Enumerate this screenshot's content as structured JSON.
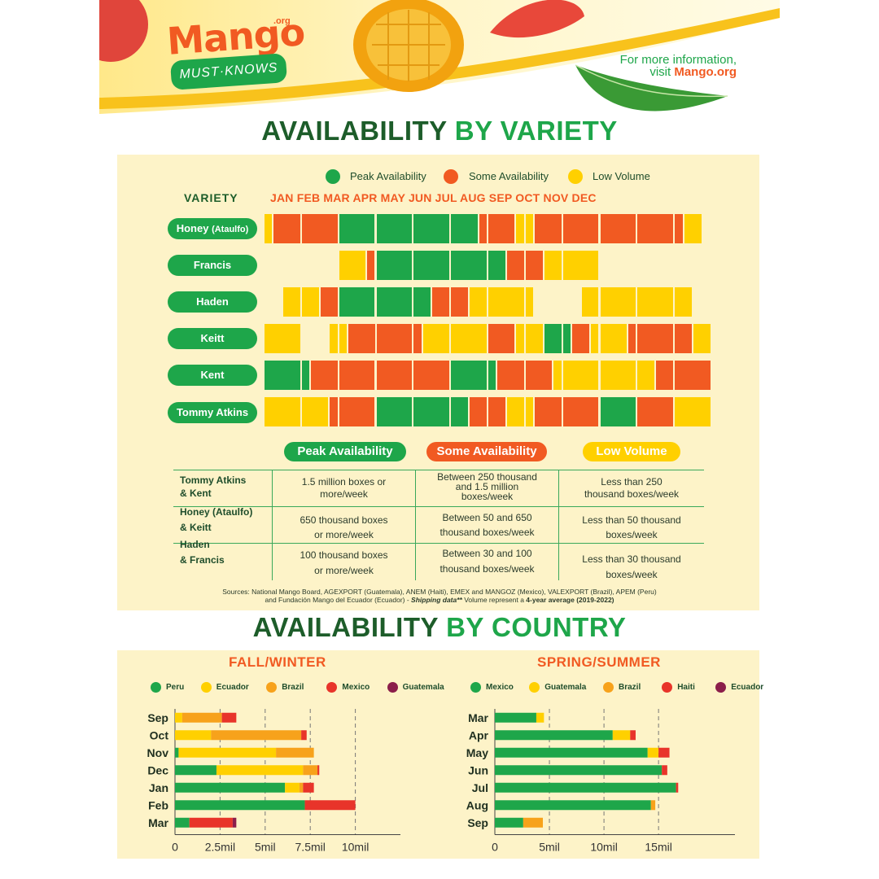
{
  "header": {
    "logo_text": "Mango",
    "logo_suffix": ".org",
    "badge": "MUST·KNOWS",
    "info_line1": "For more information,",
    "info_line2_prefix": "visit ",
    "info_link": "Mango.org"
  },
  "section1": {
    "title_dark": "AVAILABILITY",
    "title_green": "BY VARIETY"
  },
  "legend": [
    {
      "label": "Peak Availability",
      "color": "#1ea64a"
    },
    {
      "label": "Some Availability",
      "color": "#f15a22"
    },
    {
      "label": "Low Volume",
      "color": "#ffd000"
    }
  ],
  "colors": {
    "peak": "#1ea64a",
    "some": "#f15a22",
    "low": "#ffd000",
    "none": "#fdf3c8"
  },
  "variety_header": "VARIETY",
  "months_text": "JAN FEB MAR APR MAY JUN JUL AUG SEP OCT NOV DEC",
  "varieties": [
    {
      "name": "Honey",
      "suffix": "(Ataulfo)",
      "weeks": "LSSSSSSSPPPPPPPPPPPPPPPSSSSLLSSSSSSSSSSSSSSSSLL"
    },
    {
      "name": "Francis",
      "suffix": "",
      "weeks": "________LLLSPPPPPPPPPPPPPPSSSSLLLLLL____________"
    },
    {
      "name": "Haden",
      "suffix": "",
      "weeks": "__LLLLSSPPPPPPPPPPSSSSLLLLLLL_____LLLLLLLLLLLL__"
    },
    {
      "name": "Keitt",
      "suffix": "",
      "weeks": "LLLL___LLSSSSSSSSLLLLLLLSSSLLLPPPSSLLLLSSSSSSSLL"
    },
    {
      "name": "Kent",
      "suffix": "",
      "weeks": "PPPPPSSSSSSSSSSSSSSSPPPPPSSSSSSLLLLLLLLLLLSSSSSS"
    },
    {
      "name": "Tommy Atkins",
      "suffix": "",
      "weeks": "LLLLLLLSSSSSPPPPPPPPPPSSSSLLLSSSSSSSPPPPSSSSLLLL"
    }
  ],
  "table": {
    "headers": [
      "Peak Availability",
      "Some Availability",
      "Low Volume"
    ],
    "rows": [
      {
        "label1": "Tommy Atkins",
        "label2": "& Kent",
        "peak": [
          "1.5 million boxes or",
          "more/week"
        ],
        "some": [
          "Between 250 thousand",
          "and 1.5 million",
          "boxes/week"
        ],
        "low": [
          "Less than 250",
          "thousand boxes/week"
        ]
      },
      {
        "label1": "Honey (Ataulfo)",
        "label2": "& Keitt",
        "peak": [
          "650 thousand boxes",
          "or more/week"
        ],
        "some": [
          "Between 50 and 650",
          "thousand boxes/week"
        ],
        "low": [
          "Less than 50 thousand",
          "boxes/week"
        ]
      },
      {
        "label1": "Haden",
        "label2": "& Francis",
        "peak": [
          "100 thousand boxes",
          "or more/week"
        ],
        "some": [
          "Between 30 and 100",
          "thousand boxes/week"
        ],
        "low": [
          "Less than 30 thousand",
          "boxes/week"
        ]
      }
    ]
  },
  "sources": {
    "line1": "Sources: National Mango Board, AGEXPORT (Guatemala), ANEM (Haiti), EMEX and MANGOZ (Mexico), VALEXPORT (Brazil), APEM (Peru)",
    "line2_prefix": "and Fundación Mango del Ecuador (Ecuador) - ",
    "bold1": "Shipping data**",
    "line2_mid": " Volume represent a ",
    "bold2": "4-year average (2019-2022)"
  },
  "section2": {
    "title_dark": "AVAILABILITY",
    "title_green": "BY COUNTRY"
  },
  "chart_data": [
    {
      "type": "bar",
      "orientation": "horizontal",
      "stacked": true,
      "title": "FALL/WINTER",
      "categories": [
        "Sep",
        "Oct",
        "Nov",
        "Dec",
        "Jan",
        "Feb",
        "Mar"
      ],
      "series": [
        {
          "name": "Peru",
          "color": "#1ea64a",
          "values": [
            0,
            0,
            0.2,
            2.3,
            6.1,
            7.2,
            0.8
          ]
        },
        {
          "name": "Ecuador",
          "color": "#ffd000",
          "values": [
            0.4,
            2.0,
            5.4,
            4.8,
            0.8,
            0,
            0
          ]
        },
        {
          "name": "Brazil",
          "color": "#f7a21b",
          "values": [
            2.2,
            5.0,
            2.1,
            0.8,
            0.2,
            0,
            0
          ]
        },
        {
          "name": "Mexico",
          "color": "#e8342a",
          "values": [
            0.8,
            0.3,
            0,
            0.1,
            0.6,
            2.8,
            2.4
          ]
        },
        {
          "name": "Guatemala",
          "color": "#8b1e4a",
          "values": [
            0,
            0,
            0,
            0,
            0,
            0,
            0.2
          ]
        }
      ],
      "xticks": [
        "0",
        "2.5mil",
        "5mil",
        "7.5mil",
        "10mil"
      ],
      "xlim": [
        0,
        12.5
      ]
    },
    {
      "type": "bar",
      "orientation": "horizontal",
      "stacked": true,
      "title": "SPRING/SUMMER",
      "categories": [
        "Mar",
        "Apr",
        "May",
        "Jun",
        "Jul",
        "Aug",
        "Sep"
      ],
      "series": [
        {
          "name": "Mexico",
          "color": "#1ea64a",
          "values": [
            3.8,
            10.8,
            14.0,
            15.3,
            16.6,
            14.3,
            2.6
          ]
        },
        {
          "name": "Guatemala",
          "color": "#ffd000",
          "values": [
            0.7,
            1.6,
            1.0,
            0,
            0,
            0,
            0
          ]
        },
        {
          "name": "Brazil",
          "color": "#f7a21b",
          "values": [
            0,
            0,
            0,
            0,
            0,
            0.4,
            1.8
          ]
        },
        {
          "name": "Haiti",
          "color": "#e8342a",
          "values": [
            0,
            0.5,
            1.0,
            0.5,
            0.2,
            0,
            0
          ]
        },
        {
          "name": "Ecuador",
          "color": "#8b1e4a",
          "values": [
            0,
            0,
            0,
            0,
            0,
            0,
            0
          ]
        }
      ],
      "xticks": [
        "0",
        "5mil",
        "10mil",
        "15mil"
      ],
      "xlim": [
        0,
        22
      ]
    }
  ]
}
